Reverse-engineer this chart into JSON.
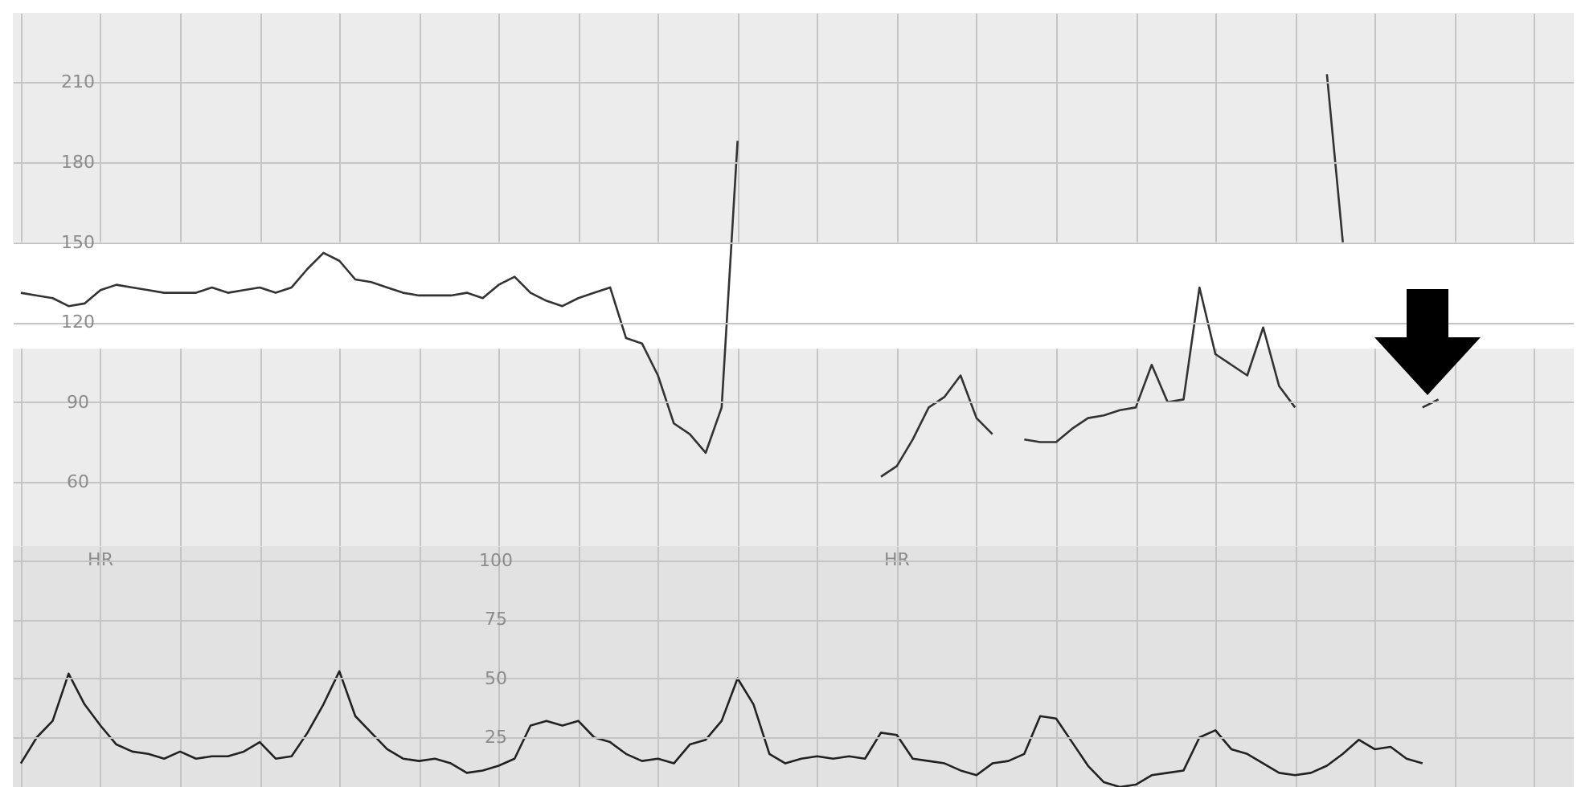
{
  "chart_data": [
    {
      "type": "line",
      "categories": [
        null,
        null,
        null,
        null,
        null,
        null,
        null,
        null,
        null,
        null,
        null,
        null,
        null,
        null,
        null,
        null,
        null,
        null,
        null,
        null,
        null,
        null,
        null,
        null,
        null,
        null,
        null,
        null,
        null,
        null,
        null,
        null,
        null,
        null,
        null,
        null,
        null,
        null,
        null,
        null,
        null,
        null,
        null,
        null,
        null,
        null,
        null,
        null,
        null,
        null,
        null,
        null,
        null,
        null,
        null,
        null,
        null,
        null,
        null,
        null,
        null,
        null,
        null,
        null,
        null,
        null,
        null,
        null,
        null,
        null,
        null,
        null,
        null,
        null,
        null,
        null,
        null,
        null,
        null,
        null,
        null,
        null,
        null,
        null,
        null,
        null,
        null,
        null,
        null,
        null,
        null,
        null,
        null,
        null,
        null,
        null,
        null,
        null
      ],
      "series": [
        {
          "color": "#333333",
          "values": [
            131,
            130,
            129,
            126,
            127,
            132,
            134,
            133,
            132,
            131,
            131,
            131,
            133,
            131,
            132,
            133,
            131,
            133,
            140,
            146,
            143,
            136,
            135,
            133,
            131,
            130,
            130,
            130,
            131,
            129,
            134,
            137,
            131,
            128,
            126,
            129,
            131,
            133,
            114,
            112,
            100,
            82,
            78,
            71,
            88,
            188,
            null,
            null,
            null,
            null,
            null,
            null,
            null,
            null,
            62,
            66,
            76,
            88,
            92,
            100,
            84,
            78,
            null,
            76,
            75,
            75,
            80,
            84,
            85,
            87,
            88,
            104,
            90,
            91,
            133,
            108,
            104,
            100,
            118,
            96,
            88,
            null,
            213,
            150,
            null,
            null,
            null,
            null,
            88,
            91,
            null,
            null,
            null,
            null,
            null,
            null,
            null,
            null
          ]
        }
      ],
      "ylim": [
        36,
        236
      ],
      "yticks": [
        60,
        90,
        120,
        150,
        180,
        210
      ],
      "grid": true,
      "tick_labels": "y",
      "bands": [
        {
          "axis": "y",
          "from": 110,
          "to": 150,
          "color": "#ffffff"
        }
      ]
    },
    {
      "type": "line",
      "categories": [
        null,
        null,
        null,
        null,
        null,
        null,
        null,
        null,
        null,
        null,
        null,
        null,
        null,
        null,
        null,
        null,
        null,
        null,
        null,
        null,
        null,
        null,
        null,
        null,
        null,
        null,
        null,
        null,
        null,
        null,
        null,
        null,
        null,
        null,
        null,
        null,
        null,
        null,
        null,
        null,
        null,
        null,
        null,
        null,
        null,
        null,
        null,
        null,
        null,
        null,
        null,
        null,
        null,
        null,
        null,
        null,
        null,
        null,
        null,
        null,
        null,
        null,
        null,
        null,
        null,
        null,
        null,
        null,
        null,
        null,
        null,
        null,
        null,
        null,
        null,
        null,
        null,
        null,
        null,
        null,
        null,
        null,
        null,
        null,
        null,
        null,
        null,
        null,
        null,
        null,
        null,
        null,
        null,
        null,
        null,
        null,
        null,
        null
      ],
      "series": [
        {
          "color": "#222222",
          "values": [
            14,
            25,
            32,
            52,
            39,
            30,
            22,
            19,
            18,
            16,
            19,
            16,
            17,
            17,
            19,
            23,
            16,
            17,
            27,
            39,
            53,
            34,
            27,
            20,
            16,
            15,
            16,
            14,
            10,
            11,
            13,
            16,
            30,
            32,
            30,
            32,
            25,
            23,
            18,
            15,
            16,
            14,
            22,
            24,
            32,
            50,
            39,
            18,
            14,
            16,
            17,
            16,
            17,
            16,
            27,
            26,
            16,
            15,
            14,
            11,
            9,
            14,
            15,
            18,
            34,
            33,
            23,
            13,
            6,
            4,
            5,
            9,
            10,
            11,
            25,
            28,
            20,
            18,
            14,
            10,
            9,
            10,
            13,
            18,
            24,
            20,
            21,
            16,
            14,
            null,
            null,
            null,
            null,
            null,
            null,
            null,
            null,
            null
          ]
        }
      ],
      "ylim": [
        4,
        106
      ],
      "yticks": [
        25,
        50,
        75,
        100
      ],
      "grid": true,
      "tick_labels": "y",
      "annotations": [
        "HR",
        "HR"
      ]
    }
  ]
}
